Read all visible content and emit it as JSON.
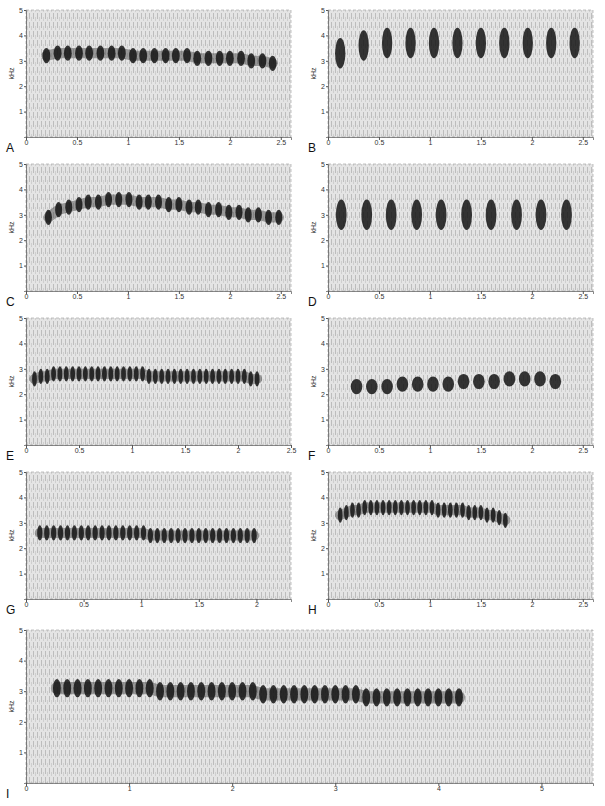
{
  "chart_data": [
    {
      "type": "spectrogram",
      "label": "A",
      "ylabel": "kHz",
      "marker": "dash",
      "line_style": "solid",
      "xlim": [
        0,
        2.6
      ],
      "xticks": [
        0,
        0.5,
        1,
        1.5,
        2,
        2.5
      ],
      "ylim": [
        0,
        5
      ],
      "yticks": [
        1,
        2,
        3,
        4,
        5
      ],
      "pulse_times": [
        0.2,
        0.31,
        0.41,
        0.52,
        0.62,
        0.73,
        0.84,
        0.94,
        1.05,
        1.15,
        1.26,
        1.37,
        1.47,
        1.58,
        1.68,
        1.79,
        1.9,
        2.0,
        2.11,
        2.21,
        2.32,
        2.42
      ],
      "pulse_freqs": [
        3.2,
        3.3,
        3.3,
        3.3,
        3.3,
        3.3,
        3.3,
        3.3,
        3.2,
        3.2,
        3.2,
        3.2,
        3.2,
        3.2,
        3.1,
        3.1,
        3.1,
        3.1,
        3.1,
        3.0,
        3.0,
        2.9
      ]
    },
    {
      "type": "spectrogram",
      "label": "B",
      "ylabel": "kHz",
      "marker": "bar",
      "line_style": "none",
      "xlim": [
        0,
        2.6
      ],
      "xticks": [
        0,
        0.5,
        1,
        1.5,
        2,
        2.5
      ],
      "ylim": [
        0,
        5
      ],
      "yticks": [
        1,
        2,
        3,
        4,
        5
      ],
      "pulse_times": [
        0.12,
        0.35,
        0.58,
        0.81,
        1.04,
        1.27,
        1.5,
        1.73,
        1.96,
        2.19,
        2.42
      ],
      "pulse_freqs": [
        3.3,
        3.6,
        3.7,
        3.7,
        3.7,
        3.7,
        3.7,
        3.7,
        3.7,
        3.7,
        3.7
      ]
    },
    {
      "type": "spectrogram",
      "label": "C",
      "ylabel": "kHz",
      "marker": "dash",
      "line_style": "solid",
      "xlim": [
        0,
        2.6
      ],
      "xticks": [
        0,
        0.5,
        1,
        1.5,
        2,
        2.5
      ],
      "ylim": [
        0,
        5
      ],
      "yticks": [
        1,
        2,
        3,
        4,
        5
      ],
      "pulse_times": [
        0.22,
        0.32,
        0.42,
        0.52,
        0.61,
        0.71,
        0.81,
        0.91,
        1.01,
        1.11,
        1.2,
        1.3,
        1.4,
        1.5,
        1.6,
        1.69,
        1.79,
        1.89,
        1.99,
        2.09,
        2.18,
        2.28,
        2.38,
        2.48
      ],
      "pulse_freqs": [
        2.9,
        3.2,
        3.3,
        3.4,
        3.5,
        3.5,
        3.6,
        3.6,
        3.6,
        3.5,
        3.5,
        3.5,
        3.4,
        3.4,
        3.3,
        3.3,
        3.2,
        3.2,
        3.1,
        3.1,
        3.0,
        3.0,
        2.9,
        2.9
      ]
    },
    {
      "type": "spectrogram",
      "label": "D",
      "ylabel": "kHz",
      "marker": "bar",
      "line_style": "none",
      "xlim": [
        0,
        2.6
      ],
      "xticks": [
        0,
        0.5,
        1,
        1.5,
        2,
        2.5
      ],
      "ylim": [
        0,
        5
      ],
      "yticks": [
        1,
        2,
        3,
        4,
        5
      ],
      "pulse_times": [
        0.13,
        0.38,
        0.62,
        0.87,
        1.11,
        1.36,
        1.6,
        1.85,
        2.09,
        2.34
      ],
      "pulse_freqs": [
        3.0,
        3.0,
        3.0,
        3.0,
        3.0,
        3.0,
        3.0,
        3.0,
        3.0,
        3.0
      ]
    },
    {
      "type": "spectrogram",
      "label": "E",
      "ylabel": "kHz",
      "marker": "dash",
      "line_style": "solid",
      "xlim": [
        0,
        2.5
      ],
      "xticks": [
        0,
        0.5,
        1,
        1.5,
        2,
        2.5
      ],
      "ylim": [
        0,
        5
      ],
      "yticks": [
        1,
        2,
        3,
        4,
        5
      ],
      "pulse_times": [
        0.08,
        0.14,
        0.2,
        0.26,
        0.32,
        0.38,
        0.44,
        0.5,
        0.56,
        0.62,
        0.68,
        0.74,
        0.8,
        0.86,
        0.92,
        0.98,
        1.04,
        1.1,
        1.16,
        1.22,
        1.28,
        1.34,
        1.4,
        1.46,
        1.52,
        1.58,
        1.64,
        1.7,
        1.76,
        1.82,
        1.88,
        1.94,
        2.0,
        2.06,
        2.12,
        2.18
      ],
      "pulse_freqs": [
        2.6,
        2.7,
        2.7,
        2.8,
        2.8,
        2.8,
        2.8,
        2.8,
        2.8,
        2.8,
        2.8,
        2.8,
        2.8,
        2.8,
        2.8,
        2.8,
        2.8,
        2.8,
        2.7,
        2.7,
        2.7,
        2.7,
        2.7,
        2.7,
        2.7,
        2.7,
        2.7,
        2.7,
        2.7,
        2.7,
        2.7,
        2.7,
        2.7,
        2.7,
        2.6,
        2.6
      ]
    },
    {
      "type": "spectrogram",
      "label": "F",
      "ylabel": "kHz",
      "marker": "dash",
      "line_style": "none",
      "xlim": [
        0,
        2.6
      ],
      "xticks": [
        0,
        0.5,
        1,
        1.5,
        2,
        2.5
      ],
      "ylim": [
        0,
        5
      ],
      "yticks": [
        1,
        2,
        3,
        4,
        5
      ],
      "pulse_times": [
        0.28,
        0.43,
        0.58,
        0.73,
        0.88,
        1.03,
        1.18,
        1.33,
        1.48,
        1.63,
        1.78,
        1.93,
        2.08,
        2.23
      ],
      "pulse_freqs": [
        2.3,
        2.3,
        2.3,
        2.4,
        2.4,
        2.4,
        2.4,
        2.5,
        2.5,
        2.5,
        2.6,
        2.6,
        2.6,
        2.5
      ]
    },
    {
      "type": "spectrogram",
      "label": "G",
      "ylabel": "kHz",
      "marker": "dash",
      "line_style": "solid",
      "xlim": [
        0,
        2.3
      ],
      "xticks": [
        0,
        0.5,
        1,
        1.5,
        2
      ],
      "ylim": [
        0,
        5
      ],
      "yticks": [
        1,
        2,
        3,
        4,
        5
      ],
      "pulse_times": [
        0.12,
        0.18,
        0.24,
        0.3,
        0.36,
        0.42,
        0.48,
        0.54,
        0.6,
        0.66,
        0.72,
        0.78,
        0.84,
        0.9,
        0.96,
        1.02,
        1.08,
        1.14,
        1.2,
        1.26,
        1.32,
        1.38,
        1.44,
        1.5,
        1.56,
        1.62,
        1.68,
        1.74,
        1.8,
        1.86,
        1.92,
        1.98
      ],
      "pulse_freqs": [
        2.6,
        2.6,
        2.6,
        2.6,
        2.6,
        2.6,
        2.6,
        2.6,
        2.6,
        2.6,
        2.6,
        2.6,
        2.6,
        2.6,
        2.6,
        2.6,
        2.5,
        2.5,
        2.5,
        2.5,
        2.5,
        2.5,
        2.5,
        2.5,
        2.5,
        2.5,
        2.5,
        2.5,
        2.5,
        2.5,
        2.5,
        2.5
      ]
    },
    {
      "type": "spectrogram",
      "label": "H",
      "ylabel": "kHz",
      "marker": "dash",
      "line_style": "solid",
      "xlim": [
        0,
        2.6
      ],
      "xticks": [
        0,
        0.5,
        1,
        1.5,
        2,
        2.5
      ],
      "ylim": [
        0,
        5
      ],
      "yticks": [
        1,
        2,
        3,
        4,
        5
      ],
      "pulse_times": [
        0.12,
        0.18,
        0.24,
        0.3,
        0.36,
        0.42,
        0.48,
        0.54,
        0.6,
        0.66,
        0.72,
        0.78,
        0.84,
        0.9,
        0.96,
        1.02,
        1.08,
        1.14,
        1.2,
        1.26,
        1.32,
        1.38,
        1.44,
        1.5,
        1.56,
        1.62,
        1.68,
        1.74
      ],
      "pulse_freqs": [
        3.3,
        3.4,
        3.5,
        3.5,
        3.6,
        3.6,
        3.6,
        3.6,
        3.6,
        3.6,
        3.6,
        3.6,
        3.6,
        3.6,
        3.6,
        3.6,
        3.5,
        3.5,
        3.5,
        3.5,
        3.5,
        3.4,
        3.4,
        3.4,
        3.3,
        3.3,
        3.2,
        3.1
      ]
    },
    {
      "type": "spectrogram",
      "label": "I",
      "ylabel": "kHz",
      "marker": "dash",
      "line_style": "solid",
      "xlim": [
        0,
        5.5
      ],
      "xticks": [
        0,
        1,
        2,
        3,
        4,
        5
      ],
      "ylim": [
        0,
        5
      ],
      "yticks": [
        1,
        2,
        3,
        4,
        5
      ],
      "pulse_times": [
        0.3,
        0.4,
        0.5,
        0.6,
        0.7,
        0.8,
        0.9,
        1.0,
        1.1,
        1.2,
        1.3,
        1.4,
        1.5,
        1.6,
        1.7,
        1.8,
        1.9,
        2.0,
        2.1,
        2.2,
        2.3,
        2.4,
        2.5,
        2.6,
        2.7,
        2.8,
        2.9,
        3.0,
        3.1,
        3.2,
        3.3,
        3.4,
        3.5,
        3.6,
        3.7,
        3.8,
        3.9,
        4.0,
        4.1,
        4.2
      ],
      "pulse_freqs": [
        3.1,
        3.1,
        3.1,
        3.1,
        3.1,
        3.1,
        3.1,
        3.1,
        3.1,
        3.1,
        3.0,
        3.0,
        3.0,
        3.0,
        3.0,
        3.0,
        3.0,
        3.0,
        3.0,
        3.0,
        2.9,
        2.9,
        2.9,
        2.9,
        2.9,
        2.9,
        2.9,
        2.9,
        2.9,
        2.9,
        2.8,
        2.8,
        2.8,
        2.8,
        2.8,
        2.8,
        2.8,
        2.8,
        2.8,
        2.8
      ]
    }
  ]
}
